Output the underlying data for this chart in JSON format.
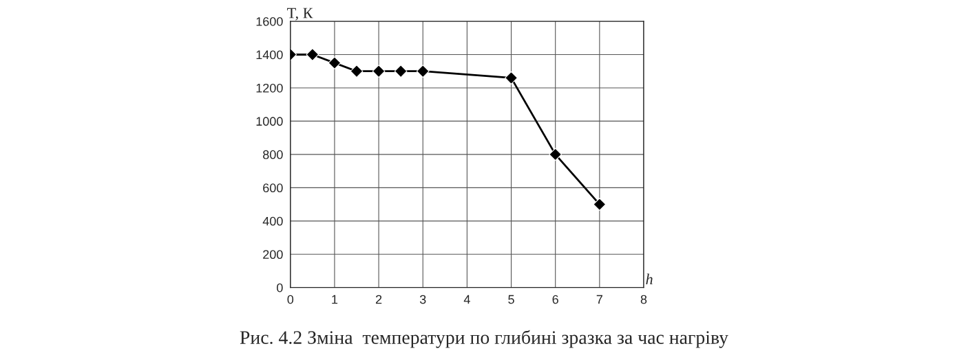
{
  "chart_data": {
    "type": "line",
    "ylabel": "T, К",
    "xlabel": "h",
    "x": [
      0,
      0.5,
      1,
      1.5,
      2,
      2.5,
      3,
      5,
      6,
      7
    ],
    "series": [
      {
        "color": "#000000",
        "values": [
          1400,
          1400,
          1350,
          1300,
          1300,
          1300,
          1300,
          1260,
          800,
          500
        ]
      }
    ],
    "xlim": [
      0,
      8
    ],
    "xticks": [
      0,
      1,
      2,
      3,
      4,
      5,
      6,
      7,
      8
    ],
    "ylim": [
      0,
      1600
    ],
    "yticks": [
      0,
      200,
      400,
      600,
      800,
      1000,
      1200,
      1400,
      1600
    ],
    "grid": true,
    "marker": "diamond",
    "line_style": "solid",
    "legend": false,
    "annotations": [
      "Рис. 4.2 Зміна  температури по глибині зразка за час нагріву"
    ]
  }
}
